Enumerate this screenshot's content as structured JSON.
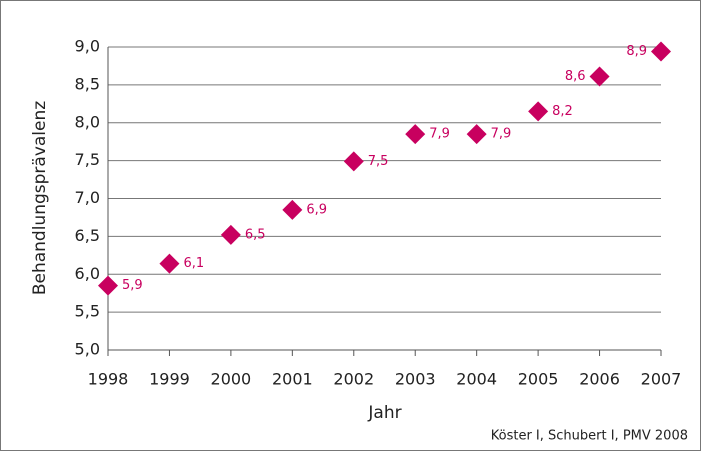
{
  "chart_data": {
    "type": "scatter",
    "x": [
      1998,
      1999,
      2000,
      2001,
      2002,
      2003,
      2004,
      2005,
      2006,
      2007
    ],
    "values": [
      5.85,
      6.14,
      6.52,
      6.85,
      7.49,
      7.85,
      7.85,
      8.15,
      8.61,
      8.94
    ],
    "value_labels": [
      "5,9",
      "6,1",
      "6,5",
      "6,9",
      "7,5",
      "7,9",
      "7,9",
      "8,2",
      "8,6",
      "8,9"
    ],
    "color": "#c8005f",
    "xlim": [
      1998,
      2007
    ],
    "xticks": [
      1998,
      1999,
      2000,
      2001,
      2002,
      2003,
      2004,
      2005,
      2006,
      2007
    ],
    "ylim": [
      5,
      9
    ],
    "yticks": [
      {
        "value": 5,
        "label": "5,0"
      },
      {
        "value": 5.5,
        "label": "5,5"
      },
      {
        "value": 6,
        "label": "6,0"
      },
      {
        "value": 6.5,
        "label": "6,5"
      },
      {
        "value": 7,
        "label": "7,0"
      },
      {
        "value": 7.5,
        "label": "7,5"
      },
      {
        "value": 8,
        "label": "8,0"
      },
      {
        "value": 8.5,
        "label": "8,5"
      },
      {
        "value": 9,
        "label": "9,0"
      }
    ],
    "grid": true,
    "xlabel": "Jahr",
    "ylabel": "Behandlungsprävalenz",
    "annotation": "Köster I, Schubert I, PMV 2008"
  }
}
